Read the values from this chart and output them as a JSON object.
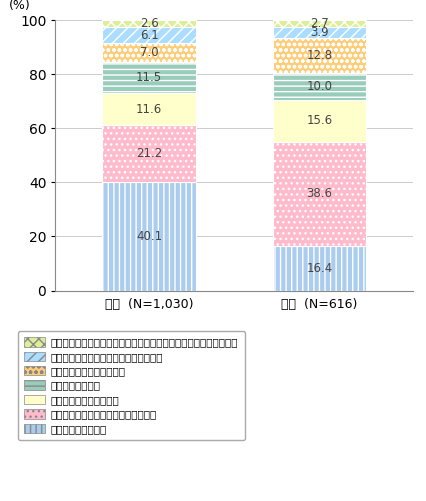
{
  "categories": [
    "個人  (N=1,030)",
    "企業  (N=616)"
  ],
  "x_labels": [
    "個人  (N=1,030)",
    "企業  (N=616)"
  ],
  "series": [
    {
      "label": "セキュリティの確保",
      "values": [
        40.1,
        16.4
      ],
      "color": "#aaccee",
      "hatch": "|||",
      "hatch_color": "#6699bb"
    },
    {
      "label": "データの提供に関する適切な同意取得",
      "values": [
        21.2,
        38.6
      ],
      "color": "#ffbbcc",
      "hatch": "...",
      "hatch_color": "#dd8899"
    },
    {
      "label": "適切なデータの取扱方法",
      "values": [
        11.6,
        15.6
      ],
      "color": "#ffffcc",
      "hatch": "",
      "hatch_color": "#cccc99"
    },
    {
      "label": "データの利用目的",
      "values": [
        11.5,
        10.0
      ],
      "color": "#99ccbb",
      "hatch": "---",
      "hatch_color": "#669988"
    },
    {
      "label": "データの種類、項目の明示",
      "values": [
        7.0,
        12.8
      ],
      "color": "#ffcc77",
      "hatch": "ooo",
      "hatch_color": "#cc9933"
    },
    {
      "label": "データを取り扱う組織・企業の概要説明",
      "values": [
        6.1,
        3.9
      ],
      "color": "#aaddff",
      "hatch": "///",
      "hatch_color": "#5599cc"
    },
    {
      "label": "データ提供に対するインセンティブ付与（サービス等のメリット）",
      "values": [
        2.6,
        2.7
      ],
      "color": "#ddee99",
      "hatch": "xxx",
      "hatch_color": "#99aa44"
    }
  ],
  "ylabel": "(%)",
  "ylim": [
    0,
    100
  ],
  "yticks": [
    0,
    20,
    40,
    60,
    80,
    100
  ],
  "bar_width": 0.55,
  "x_positions": [
    0.0,
    1.0
  ],
  "figure_size": [
    4.26,
    5.01
  ],
  "dpi": 100,
  "text_color": "#444444",
  "legend_fontsize": 7.5,
  "axis_fontsize": 9,
  "value_fontsize": 8.5,
  "bg_color": "#ffffff"
}
